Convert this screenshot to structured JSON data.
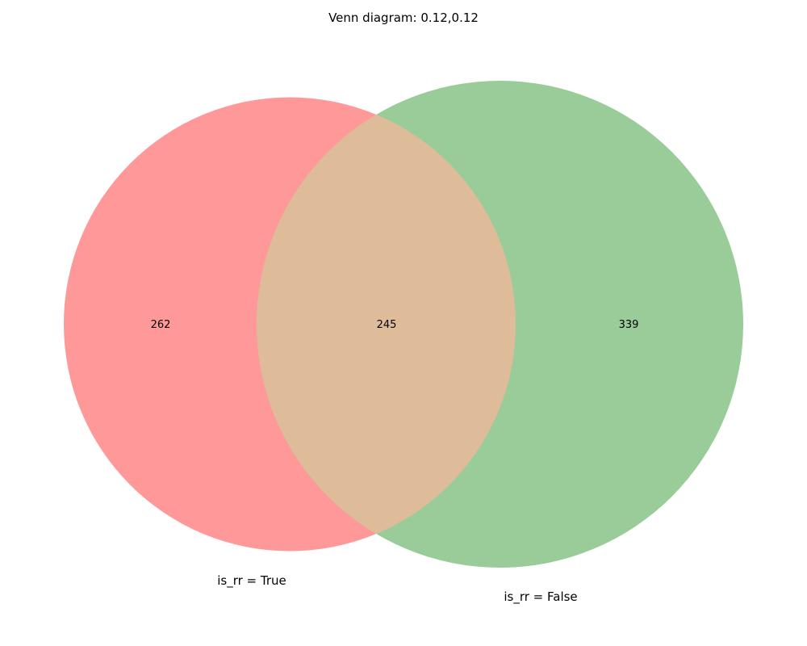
{
  "title": "Venn diagram: 0.12,0.12",
  "sets": [
    {
      "id": "A",
      "label": "is_rr = True",
      "color": "#ff9999"
    },
    {
      "id": "B",
      "label": "is_rr = False",
      "color": "#99cc99"
    }
  ],
  "overlap_color": "#dfbc99",
  "counts": {
    "only_A": "262",
    "both": "245",
    "only_B": "339"
  }
}
